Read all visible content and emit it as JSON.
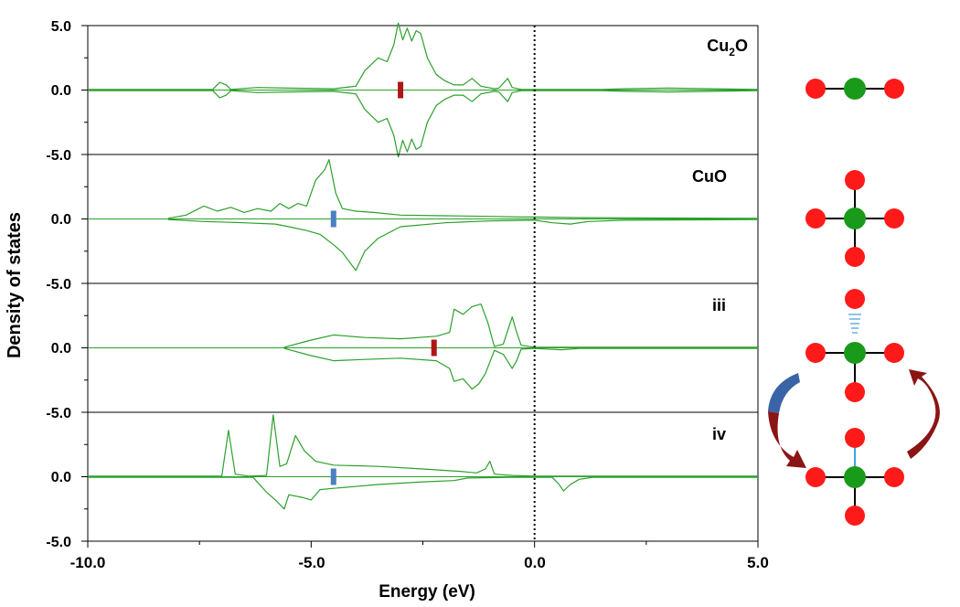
{
  "chart_data": {
    "type": "line",
    "xlabel": "Energy (eV)",
    "ylabel": "Density of states",
    "xlim": [
      -10,
      5
    ],
    "x_ticks": [
      "-10.0",
      "-5.0",
      "0.0",
      "5.0"
    ],
    "ylim": [
      -5,
      5
    ],
    "y_ticks": [
      "5.0",
      "0.0",
      "-5.0"
    ],
    "fermi_level": 0.0,
    "line_color": "#2ca02c",
    "panels": [
      {
        "label": "Cu",
        "label_sub": "2",
        "label_after": "O",
        "marker": {
          "x": -3.0,
          "color": "#b01515"
        },
        "series": [
          {
            "points": [
              [
                -10,
                0.05
              ],
              [
                -7.2,
                0.05
              ],
              [
                -7.05,
                0.6
              ],
              [
                -6.9,
                0.4
              ],
              [
                -6.8,
                0.05
              ],
              [
                -6.2,
                0.2
              ],
              [
                -5.5,
                0.15
              ],
              [
                -4.5,
                0.1
              ],
              [
                -4.0,
                0.3
              ],
              [
                -3.8,
                1.5
              ],
              [
                -3.5,
                2.5
              ],
              [
                -3.3,
                2.2
              ],
              [
                -3.15,
                3.5
              ],
              [
                -3.05,
                5.2
              ],
              [
                -2.95,
                3.9
              ],
              [
                -2.85,
                4.8
              ],
              [
                -2.75,
                3.8
              ],
              [
                -2.65,
                4.6
              ],
              [
                -2.55,
                4.4
              ],
              [
                -2.4,
                2.5
              ],
              [
                -2.2,
                1.2
              ],
              [
                -2.0,
                0.7
              ],
              [
                -1.8,
                0.4
              ],
              [
                -1.6,
                0.4
              ],
              [
                -1.4,
                0.9
              ],
              [
                -1.2,
                0.3
              ],
              [
                -0.9,
                0.1
              ],
              [
                -0.8,
                0.15
              ],
              [
                -0.6,
                0.9
              ],
              [
                -0.5,
                0.2
              ],
              [
                -0.3,
                0.05
              ],
              [
                0,
                0.05
              ],
              [
                1.5,
                0.05
              ],
              [
                2.0,
                0.1
              ],
              [
                3.0,
                0.15
              ],
              [
                4.0,
                0.1
              ],
              [
                5,
                0.05
              ]
            ]
          },
          {
            "points": [
              [
                -10,
                -0.05
              ],
              [
                -7.2,
                -0.05
              ],
              [
                -7.05,
                -0.6
              ],
              [
                -6.9,
                -0.4
              ],
              [
                -6.8,
                -0.05
              ],
              [
                -6.2,
                -0.2
              ],
              [
                -5.5,
                -0.15
              ],
              [
                -4.5,
                -0.1
              ],
              [
                -4.0,
                -0.3
              ],
              [
                -3.8,
                -1.5
              ],
              [
                -3.5,
                -2.5
              ],
              [
                -3.3,
                -2.2
              ],
              [
                -3.15,
                -3.5
              ],
              [
                -3.05,
                -5.2
              ],
              [
                -2.95,
                -3.9
              ],
              [
                -2.85,
                -4.8
              ],
              [
                -2.75,
                -3.8
              ],
              [
                -2.65,
                -4.6
              ],
              [
                -2.55,
                -4.4
              ],
              [
                -2.4,
                -2.5
              ],
              [
                -2.2,
                -1.2
              ],
              [
                -2.0,
                -0.7
              ],
              [
                -1.8,
                -0.4
              ],
              [
                -1.6,
                -0.4
              ],
              [
                -1.4,
                -0.9
              ],
              [
                -1.2,
                -0.3
              ],
              [
                -0.9,
                -0.1
              ],
              [
                -0.8,
                -0.15
              ],
              [
                -0.6,
                -0.9
              ],
              [
                -0.5,
                -0.2
              ],
              [
                -0.3,
                -0.05
              ],
              [
                0,
                -0.05
              ],
              [
                1.5,
                -0.05
              ],
              [
                2.0,
                -0.1
              ],
              [
                3.0,
                -0.15
              ],
              [
                4.0,
                -0.1
              ],
              [
                5,
                -0.05
              ]
            ]
          }
        ]
      },
      {
        "label": "CuO",
        "label_sub": "",
        "label_after": "",
        "marker": {
          "x": -4.5,
          "color": "#4a7fc1"
        },
        "series": [
          {
            "points": [
              [
                -8.2,
                0.05
              ],
              [
                -7.8,
                0.3
              ],
              [
                -7.4,
                1.0
              ],
              [
                -7.1,
                0.6
              ],
              [
                -6.8,
                0.9
              ],
              [
                -6.5,
                0.5
              ],
              [
                -6.2,
                0.8
              ],
              [
                -5.9,
                0.6
              ],
              [
                -5.7,
                1.2
              ],
              [
                -5.5,
                0.8
              ],
              [
                -5.3,
                1.2
              ],
              [
                -5.1,
                1.0
              ],
              [
                -4.9,
                3.0
              ],
              [
                -4.7,
                3.8
              ],
              [
                -4.6,
                4.6
              ],
              [
                -4.45,
                2.0
              ],
              [
                -4.3,
                0.8
              ],
              [
                -4.0,
                0.6
              ],
              [
                -3.6,
                0.5
              ],
              [
                -3.0,
                0.3
              ],
              [
                -2.0,
                0.25
              ],
              [
                -1.0,
                0.2
              ],
              [
                -0.3,
                0.15
              ],
              [
                0,
                0.15
              ],
              [
                1.0,
                0.1
              ],
              [
                5,
                0.05
              ]
            ]
          },
          {
            "points": [
              [
                -8.2,
                -0.05
              ],
              [
                -7.4,
                -0.2
              ],
              [
                -6.5,
                -0.3
              ],
              [
                -5.8,
                -0.4
              ],
              [
                -5.5,
                -0.6
              ],
              [
                -5.1,
                -0.9
              ],
              [
                -4.8,
                -1.2
              ],
              [
                -4.5,
                -2.0
              ],
              [
                -4.3,
                -2.6
              ],
              [
                -4.0,
                -4.0
              ],
              [
                -3.8,
                -2.5
              ],
              [
                -3.5,
                -1.5
              ],
              [
                -3.0,
                -0.6
              ],
              [
                -2.0,
                -0.3
              ],
              [
                -1.0,
                -0.15
              ],
              [
                0,
                -0.1
              ],
              [
                0.4,
                -0.3
              ],
              [
                0.8,
                -0.4
              ],
              [
                1.2,
                -0.2
              ],
              [
                2.0,
                -0.1
              ],
              [
                5,
                -0.05
              ]
            ]
          }
        ]
      },
      {
        "label": "iii",
        "label_sub": "",
        "label_after": "",
        "marker": {
          "x": -2.25,
          "color": "#b01515"
        },
        "series": [
          {
            "points": [
              [
                -5.6,
                0.05
              ],
              [
                -5.0,
                0.6
              ],
              [
                -4.5,
                1.0
              ],
              [
                -3.8,
                0.8
              ],
              [
                -3.0,
                0.7
              ],
              [
                -2.2,
                0.9
              ],
              [
                -1.9,
                1.2
              ],
              [
                -1.8,
                3.0
              ],
              [
                -1.6,
                2.6
              ],
              [
                -1.4,
                3.2
              ],
              [
                -1.2,
                3.4
              ],
              [
                -1.05,
                2.0
              ],
              [
                -0.9,
                0.1
              ],
              [
                -0.7,
                0.3
              ],
              [
                -0.5,
                2.4
              ],
              [
                -0.4,
                1.2
              ],
              [
                -0.3,
                0.2
              ],
              [
                0,
                0.05
              ],
              [
                5,
                0.05
              ]
            ]
          },
          {
            "points": [
              [
                -5.6,
                -0.05
              ],
              [
                -5.0,
                -0.6
              ],
              [
                -4.5,
                -1.0
              ],
              [
                -3.8,
                -0.9
              ],
              [
                -3.0,
                -0.8
              ],
              [
                -2.2,
                -1.0
              ],
              [
                -1.9,
                -1.6
              ],
              [
                -1.8,
                -2.6
              ],
              [
                -1.6,
                -2.4
              ],
              [
                -1.4,
                -3.2
              ],
              [
                -1.25,
                -2.8
              ],
              [
                -1.1,
                -2.0
              ],
              [
                -0.9,
                -0.2
              ],
              [
                -0.7,
                -0.5
              ],
              [
                -0.5,
                -1.6
              ],
              [
                -0.4,
                -1.0
              ],
              [
                -0.3,
                -0.1
              ],
              [
                0,
                -0.05
              ],
              [
                0.6,
                -0.15
              ],
              [
                1.0,
                -0.05
              ],
              [
                5,
                -0.05
              ]
            ]
          }
        ]
      },
      {
        "label": "iv",
        "label_sub": "",
        "label_after": "",
        "marker": {
          "x": -4.5,
          "color": "#4a7fc1"
        },
        "series": [
          {
            "points": [
              [
                -10,
                0.05
              ],
              [
                -7.0,
                0.05
              ],
              [
                -6.85,
                3.6
              ],
              [
                -6.7,
                0.2
              ],
              [
                -6.4,
                0.05
              ],
              [
                -6.0,
                0.1
              ],
              [
                -5.85,
                4.8
              ],
              [
                -5.7,
                0.8
              ],
              [
                -5.55,
                1.0
              ],
              [
                -5.35,
                3.2
              ],
              [
                -5.15,
                2.0
              ],
              [
                -4.9,
                1.2
              ],
              [
                -4.5,
                0.9
              ],
              [
                -3.5,
                0.8
              ],
              [
                -2.5,
                0.6
              ],
              [
                -1.6,
                0.4
              ],
              [
                -1.3,
                0.3
              ],
              [
                -1.1,
                0.6
              ],
              [
                -1.0,
                1.2
              ],
              [
                -0.9,
                0.2
              ],
              [
                -0.5,
                0.1
              ],
              [
                0,
                0.05
              ],
              [
                5,
                0.05
              ]
            ]
          },
          {
            "points": [
              [
                -10,
                -0.05
              ],
              [
                -6.3,
                -0.05
              ],
              [
                -6.0,
                -1.2
              ],
              [
                -5.8,
                -1.8
              ],
              [
                -5.6,
                -2.5
              ],
              [
                -5.5,
                -1.4
              ],
              [
                -5.2,
                -1.6
              ],
              [
                -5.0,
                -1.8
              ],
              [
                -4.8,
                -1.0
              ],
              [
                -4.5,
                -0.9
              ],
              [
                -3.5,
                -0.6
              ],
              [
                -2.5,
                -0.4
              ],
              [
                -1.8,
                -0.3
              ],
              [
                -1.5,
                -0.1
              ],
              [
                -0.5,
                -0.05
              ],
              [
                0.4,
                -0.05
              ],
              [
                0.55,
                -0.6
              ],
              [
                0.65,
                -1.1
              ],
              [
                0.8,
                -0.6
              ],
              [
                1.0,
                -0.2
              ],
              [
                1.3,
                -0.05
              ],
              [
                5,
                -0.05
              ]
            ]
          }
        ]
      }
    ]
  }
}
